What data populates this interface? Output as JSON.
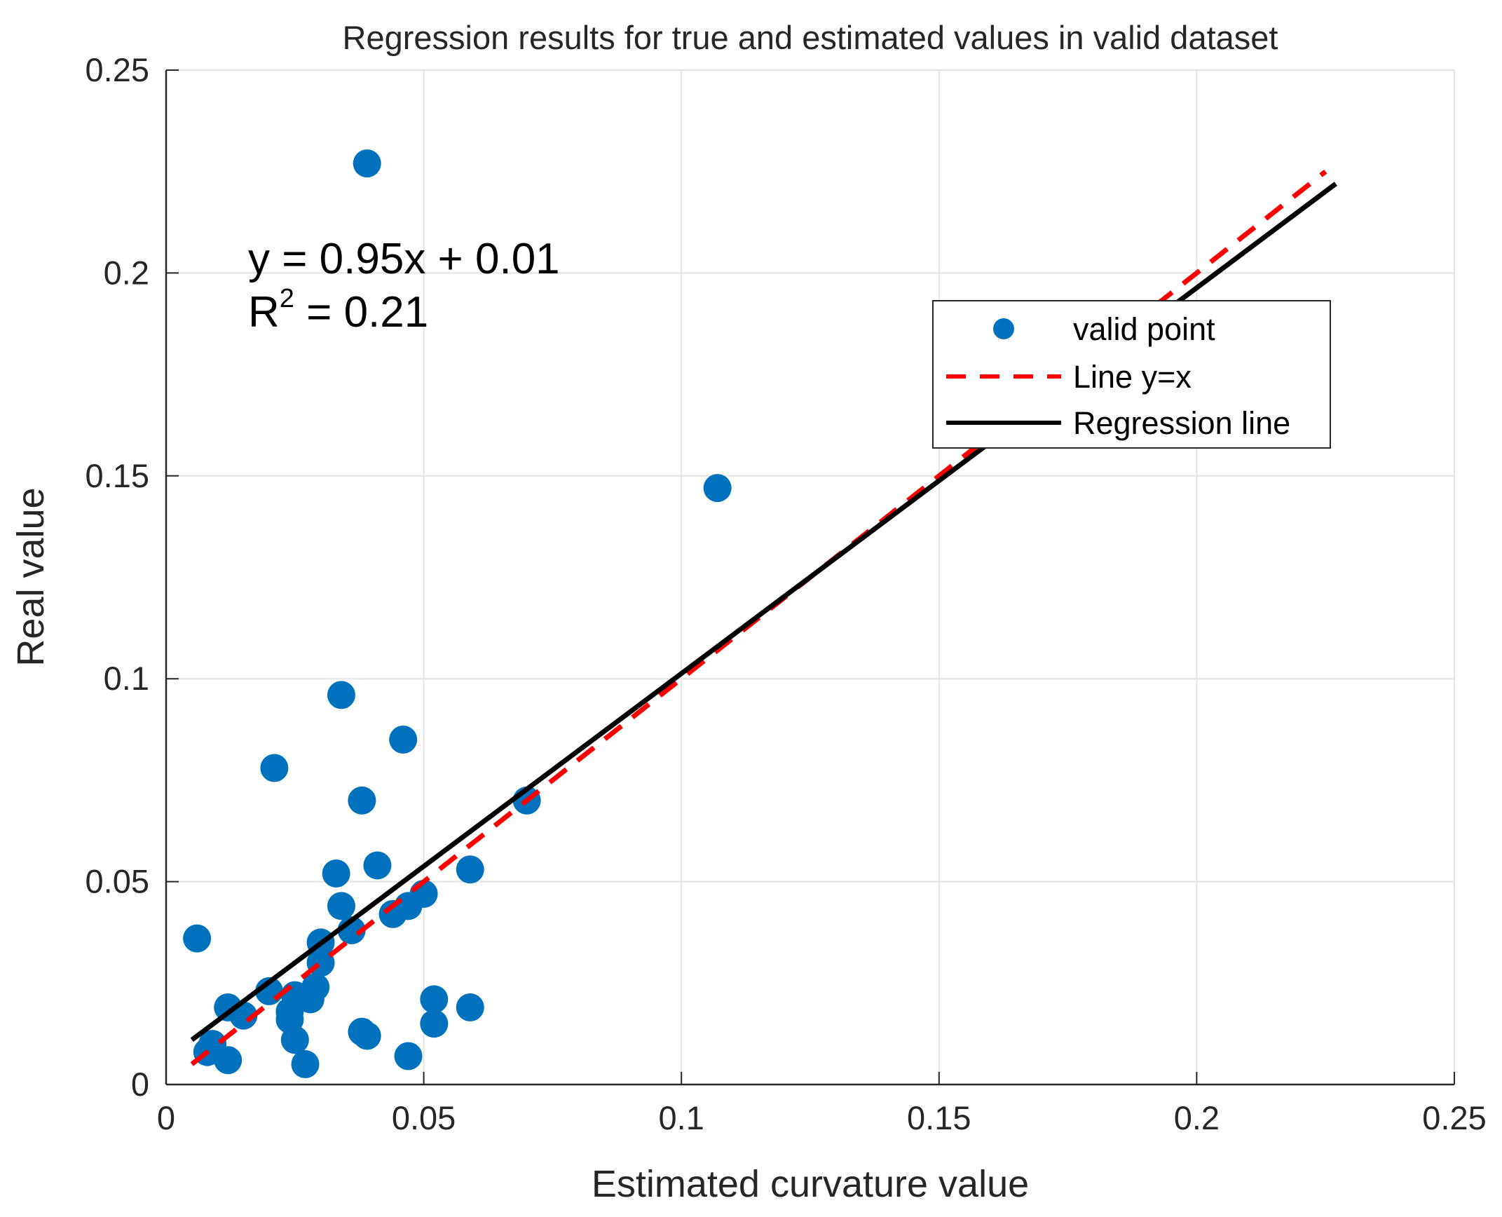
{
  "chart_data": {
    "type": "scatter",
    "title": "Regression results for true and estimated values in valid dataset",
    "xlabel": "Estimated curvature value",
    "ylabel": "Real value",
    "xlim": [
      0,
      0.25
    ],
    "ylim": [
      0,
      0.25
    ],
    "grid": true,
    "x_ticks": [
      0,
      0.05,
      0.1,
      0.15,
      0.2,
      0.25
    ],
    "x_tick_labels": [
      "0",
      "0.05",
      "0.1",
      "0.15",
      "0.2",
      "0.25"
    ],
    "y_ticks": [
      0,
      0.05,
      0.1,
      0.15,
      0.2,
      0.25
    ],
    "y_tick_labels": [
      "0",
      "0.05",
      "0.1",
      "0.15",
      "0.2",
      "0.25"
    ],
    "annotation": {
      "equation": "y = 0.95x + 0.01",
      "r2_prefix": "R",
      "r2_superscript": "2",
      "r2_value": " = 0.21"
    },
    "legend": {
      "position": "upper-right",
      "entries": [
        {
          "label": "valid point",
          "style": "marker",
          "color": "#0072BD"
        },
        {
          "label": "Line y=x",
          "style": "dashed",
          "color": "#FF0000"
        },
        {
          "label": "Regression line",
          "style": "solid",
          "color": "#000000"
        }
      ]
    },
    "series": [
      {
        "name": "valid point",
        "color": "#0072BD",
        "points": [
          [
            0.039,
            0.227
          ],
          [
            0.107,
            0.147
          ],
          [
            0.034,
            0.096
          ],
          [
            0.046,
            0.085
          ],
          [
            0.021,
            0.078
          ],
          [
            0.038,
            0.07
          ],
          [
            0.07,
            0.07
          ],
          [
            0.041,
            0.054
          ],
          [
            0.059,
            0.053
          ],
          [
            0.033,
            0.052
          ],
          [
            0.05,
            0.047
          ],
          [
            0.047,
            0.044
          ],
          [
            0.034,
            0.044
          ],
          [
            0.044,
            0.042
          ],
          [
            0.036,
            0.038
          ],
          [
            0.006,
            0.036
          ],
          [
            0.03,
            0.035
          ],
          [
            0.03,
            0.03
          ],
          [
            0.02,
            0.023
          ],
          [
            0.029,
            0.024
          ],
          [
            0.025,
            0.022
          ],
          [
            0.028,
            0.021
          ],
          [
            0.052,
            0.021
          ],
          [
            0.012,
            0.019
          ],
          [
            0.059,
            0.019
          ],
          [
            0.024,
            0.018
          ],
          [
            0.015,
            0.017
          ],
          [
            0.052,
            0.015
          ],
          [
            0.024,
            0.016
          ],
          [
            0.038,
            0.013
          ],
          [
            0.039,
            0.012
          ],
          [
            0.025,
            0.011
          ],
          [
            0.009,
            0.01
          ],
          [
            0.008,
            0.008
          ],
          [
            0.047,
            0.007
          ],
          [
            0.012,
            0.006
          ],
          [
            0.027,
            0.005
          ]
        ]
      },
      {
        "name": "Line y=x",
        "color": "#FF0000",
        "style": "dashed",
        "x": [
          0.005,
          0.225
        ],
        "y": [
          0.005,
          0.225
        ]
      },
      {
        "name": "Regression line",
        "color": "#000000",
        "style": "solid",
        "x": [
          0.005,
          0.227
        ],
        "y": [
          0.011,
          0.222
        ]
      }
    ]
  }
}
